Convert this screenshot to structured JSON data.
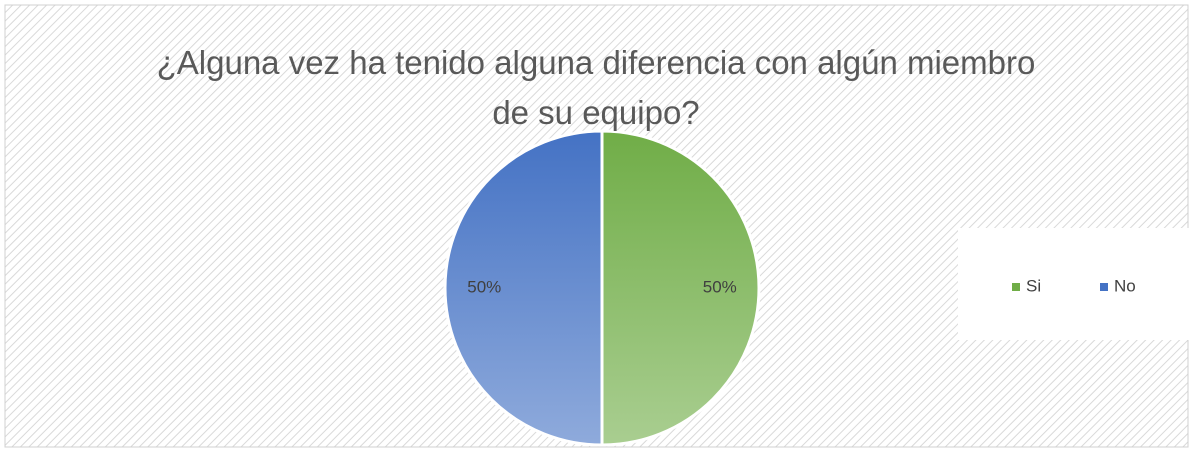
{
  "chart_data": {
    "type": "pie",
    "title": "¿Alguna vez ha tenido alguna diferencia con algún miembro de su equipo?",
    "categories": [
      "Si",
      "No"
    ],
    "values": [
      50,
      50
    ],
    "value_labels": [
      "50%",
      "50%"
    ],
    "colors": [
      "#70ad47",
      "#4472c4"
    ],
    "legend": "right"
  }
}
